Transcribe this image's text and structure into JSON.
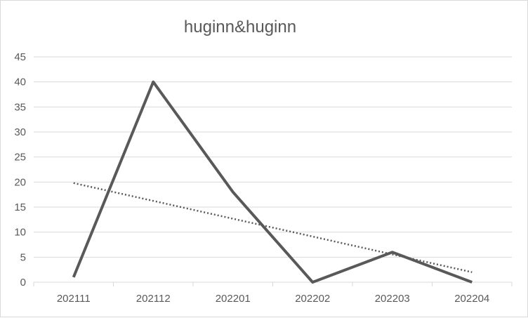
{
  "chart_data": {
    "type": "line",
    "title": "huginn&huginn",
    "xlabel": "",
    "ylabel": "",
    "categories": [
      "202111",
      "202112",
      "202201",
      "202202",
      "202203",
      "202204"
    ],
    "series": [
      {
        "values": [
          1,
          40,
          18,
          0,
          6,
          0
        ],
        "color": "#595959",
        "style": "solid"
      }
    ],
    "trendline": {
      "type": "linear",
      "start": 19.8,
      "end": 2.0,
      "color": "#595959",
      "style": "dotted"
    },
    "ylim": [
      0,
      45
    ],
    "yticks": [
      0,
      5,
      10,
      15,
      20,
      25,
      30,
      35,
      40,
      45
    ],
    "grid": true,
    "legend": "none"
  }
}
